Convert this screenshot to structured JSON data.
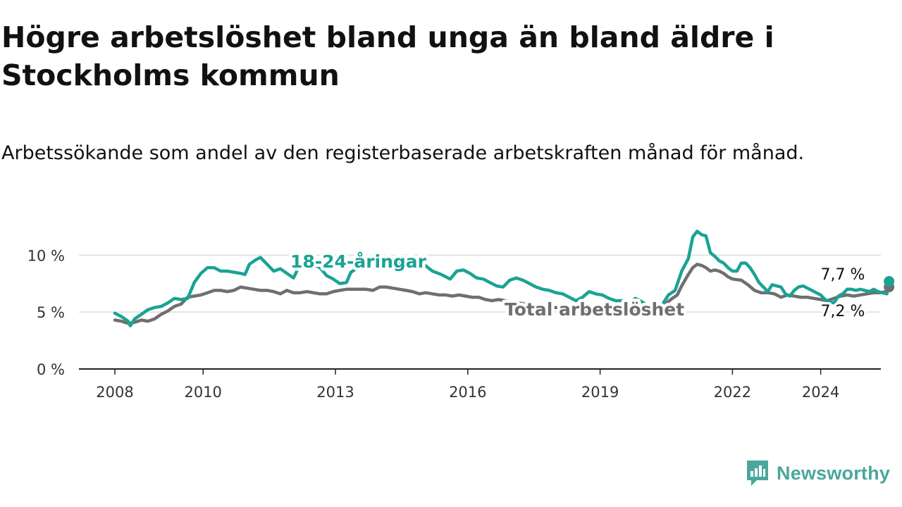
{
  "title": "Högre arbetslöshet bland unga än bland äldre i Stockholms kommun",
  "subtitle": "Arbetssökande som andel av den registerbaserade arbetskraften månad för månad.",
  "brand": {
    "name": "Newsworthy",
    "icon": "newsworthy-logo-icon",
    "color": "#4aa79c"
  },
  "chart_data": {
    "type": "line",
    "title": "Högre arbetslöshet bland unga än bland äldre i Stockholms kommun",
    "xlabel": "",
    "ylabel": "",
    "xlim": [
      2008.0,
      2025.75
    ],
    "ylim": [
      0,
      12
    ],
    "yticks": [
      0,
      5,
      10
    ],
    "ytick_labels": [
      "0 %",
      "5 %",
      "10 %"
    ],
    "xticks": [
      2008,
      2010,
      2013,
      2016,
      2019,
      2022,
      2024
    ],
    "xtick_labels": [
      "2008",
      "2010",
      "2013",
      "2016",
      "2019",
      "2022",
      "2024"
    ],
    "grid": true,
    "series": [
      {
        "name": "18-24-åringar",
        "color": "#1aa394",
        "end_label": "7,7 %",
        "points": [
          [
            2008.0,
            4.9
          ],
          [
            2008.15,
            4.6
          ],
          [
            2008.3,
            4.2
          ],
          [
            2008.35,
            3.8
          ],
          [
            2008.45,
            4.4
          ],
          [
            2008.6,
            4.8
          ],
          [
            2008.75,
            5.2
          ],
          [
            2008.9,
            5.4
          ],
          [
            2009.05,
            5.5
          ],
          [
            2009.2,
            5.8
          ],
          [
            2009.35,
            6.2
          ],
          [
            2009.5,
            6.1
          ],
          [
            2009.65,
            6.2
          ],
          [
            2009.8,
            7.6
          ],
          [
            2009.95,
            8.4
          ],
          [
            2010.1,
            8.9
          ],
          [
            2010.25,
            8.9
          ],
          [
            2010.4,
            8.6
          ],
          [
            2010.55,
            8.6
          ],
          [
            2010.7,
            8.5
          ],
          [
            2010.85,
            8.4
          ],
          [
            2010.95,
            8.3
          ],
          [
            2011.05,
            9.2
          ],
          [
            2011.2,
            9.6
          ],
          [
            2011.3,
            9.8
          ],
          [
            2011.45,
            9.2
          ],
          [
            2011.6,
            8.6
          ],
          [
            2011.75,
            8.8
          ],
          [
            2011.9,
            8.4
          ],
          [
            2012.05,
            8.0
          ],
          [
            2012.2,
            9.2
          ],
          [
            2012.35,
            9.7
          ],
          [
            2012.5,
            9.2
          ],
          [
            2012.65,
            8.9
          ],
          [
            2012.8,
            8.2
          ],
          [
            2012.95,
            7.9
          ],
          [
            2013.1,
            7.5
          ],
          [
            2013.25,
            7.6
          ],
          [
            2013.35,
            8.5
          ],
          [
            2013.55,
            9.0
          ],
          [
            2013.75,
            9.4
          ],
          [
            2013.95,
            8.9
          ],
          [
            2014.15,
            9.2
          ],
          [
            2014.35,
            9.0
          ],
          [
            2014.5,
            9.3
          ],
          [
            2014.65,
            9.5
          ],
          [
            2014.8,
            9.5
          ],
          [
            2015.0,
            9.2
          ],
          [
            2015.2,
            8.6
          ],
          [
            2015.4,
            8.3
          ],
          [
            2015.6,
            7.9
          ],
          [
            2015.75,
            8.6
          ],
          [
            2015.9,
            8.7
          ],
          [
            2016.05,
            8.4
          ],
          [
            2016.2,
            8.0
          ],
          [
            2016.35,
            7.9
          ],
          [
            2016.5,
            7.6
          ],
          [
            2016.65,
            7.3
          ],
          [
            2016.8,
            7.2
          ],
          [
            2016.95,
            7.8
          ],
          [
            2017.1,
            8.0
          ],
          [
            2017.25,
            7.8
          ],
          [
            2017.4,
            7.5
          ],
          [
            2017.55,
            7.2
          ],
          [
            2017.7,
            7.0
          ],
          [
            2017.85,
            6.9
          ],
          [
            2018.0,
            6.7
          ],
          [
            2018.15,
            6.6
          ],
          [
            2018.3,
            6.3
          ],
          [
            2018.45,
            6.0
          ],
          [
            2018.6,
            6.3
          ],
          [
            2018.75,
            6.8
          ],
          [
            2018.9,
            6.6
          ],
          [
            2019.05,
            6.5
          ],
          [
            2019.2,
            6.2
          ],
          [
            2019.35,
            6.0
          ],
          [
            2019.5,
            6.0
          ],
          [
            2019.65,
            5.8
          ],
          [
            2019.8,
            6.2
          ],
          [
            2019.95,
            5.9
          ],
          [
            2020.1,
            5.5
          ],
          [
            2020.25,
            5.3
          ],
          [
            2020.4,
            5.6
          ],
          [
            2020.55,
            6.5
          ],
          [
            2020.7,
            6.9
          ],
          [
            2020.85,
            8.6
          ],
          [
            2021.0,
            9.7
          ],
          [
            2021.1,
            11.6
          ],
          [
            2021.2,
            12.1
          ],
          [
            2021.3,
            11.8
          ],
          [
            2021.4,
            11.7
          ],
          [
            2021.5,
            10.2
          ],
          [
            2021.6,
            9.9
          ],
          [
            2021.7,
            9.5
          ],
          [
            2021.8,
            9.3
          ],
          [
            2021.9,
            8.9
          ],
          [
            2022.0,
            8.6
          ],
          [
            2022.1,
            8.6
          ],
          [
            2022.2,
            9.3
          ],
          [
            2022.3,
            9.3
          ],
          [
            2022.4,
            8.9
          ],
          [
            2022.5,
            8.3
          ],
          [
            2022.6,
            7.6
          ],
          [
            2022.7,
            7.2
          ],
          [
            2022.8,
            6.8
          ],
          [
            2022.9,
            7.4
          ],
          [
            2023.0,
            7.3
          ],
          [
            2023.1,
            7.2
          ],
          [
            2023.2,
            6.6
          ],
          [
            2023.3,
            6.4
          ],
          [
            2023.4,
            6.9
          ],
          [
            2023.5,
            7.2
          ],
          [
            2023.6,
            7.3
          ],
          [
            2023.7,
            7.1
          ],
          [
            2023.8,
            6.9
          ],
          [
            2023.9,
            6.7
          ],
          [
            2024.0,
            6.5
          ],
          [
            2024.1,
            6.1
          ],
          [
            2024.2,
            5.9
          ],
          [
            2024.3,
            5.8
          ],
          [
            2024.4,
            6.4
          ],
          [
            2024.5,
            6.6
          ],
          [
            2024.6,
            7.0
          ],
          [
            2024.7,
            7.0
          ],
          [
            2024.8,
            6.9
          ],
          [
            2024.9,
            7.0
          ],
          [
            2025.0,
            6.9
          ],
          [
            2025.1,
            6.8
          ],
          [
            2025.2,
            7.0
          ],
          [
            2025.3,
            6.8
          ],
          [
            2025.4,
            6.7
          ],
          [
            2025.5,
            6.6
          ],
          [
            2025.55,
            7.7
          ]
        ]
      },
      {
        "name": "Total arbetslöshet",
        "color": "#6f6f6f",
        "end_label": "7,2 %",
        "points": [
          [
            2008.0,
            4.3
          ],
          [
            2008.15,
            4.2
          ],
          [
            2008.3,
            4.0
          ],
          [
            2008.45,
            4.1
          ],
          [
            2008.6,
            4.3
          ],
          [
            2008.75,
            4.2
          ],
          [
            2008.9,
            4.4
          ],
          [
            2009.05,
            4.8
          ],
          [
            2009.2,
            5.1
          ],
          [
            2009.35,
            5.5
          ],
          [
            2009.5,
            5.7
          ],
          [
            2009.65,
            6.3
          ],
          [
            2009.8,
            6.4
          ],
          [
            2009.95,
            6.5
          ],
          [
            2010.1,
            6.7
          ],
          [
            2010.25,
            6.9
          ],
          [
            2010.4,
            6.9
          ],
          [
            2010.55,
            6.8
          ],
          [
            2010.7,
            6.9
          ],
          [
            2010.85,
            7.2
          ],
          [
            2011.0,
            7.1
          ],
          [
            2011.15,
            7.0
          ],
          [
            2011.3,
            6.9
          ],
          [
            2011.45,
            6.9
          ],
          [
            2011.6,
            6.8
          ],
          [
            2011.75,
            6.6
          ],
          [
            2011.9,
            6.9
          ],
          [
            2012.05,
            6.7
          ],
          [
            2012.2,
            6.7
          ],
          [
            2012.35,
            6.8
          ],
          [
            2012.5,
            6.7
          ],
          [
            2012.65,
            6.6
          ],
          [
            2012.8,
            6.6
          ],
          [
            2012.95,
            6.8
          ],
          [
            2013.1,
            6.9
          ],
          [
            2013.25,
            7.0
          ],
          [
            2013.4,
            7.0
          ],
          [
            2013.55,
            7.0
          ],
          [
            2013.7,
            7.0
          ],
          [
            2013.85,
            6.9
          ],
          [
            2014.0,
            7.2
          ],
          [
            2014.15,
            7.2
          ],
          [
            2014.3,
            7.1
          ],
          [
            2014.45,
            7.0
          ],
          [
            2014.6,
            6.9
          ],
          [
            2014.75,
            6.8
          ],
          [
            2014.9,
            6.6
          ],
          [
            2015.05,
            6.7
          ],
          [
            2015.2,
            6.6
          ],
          [
            2015.35,
            6.5
          ],
          [
            2015.5,
            6.5
          ],
          [
            2015.65,
            6.4
          ],
          [
            2015.8,
            6.5
          ],
          [
            2015.95,
            6.4
          ],
          [
            2016.1,
            6.3
          ],
          [
            2016.25,
            6.3
          ],
          [
            2016.4,
            6.1
          ],
          [
            2016.55,
            6.0
          ],
          [
            2016.7,
            6.1
          ],
          [
            2016.85,
            6.0
          ],
          [
            2017.0,
            5.9
          ],
          [
            2017.15,
            5.8
          ],
          [
            2017.3,
            5.7
          ],
          [
            2017.45,
            5.6
          ],
          [
            2017.6,
            5.6
          ],
          [
            2017.75,
            5.5
          ],
          [
            2017.9,
            5.4
          ],
          [
            2018.05,
            5.4
          ],
          [
            2018.2,
            5.3
          ],
          [
            2018.35,
            5.2
          ],
          [
            2018.5,
            5.3
          ],
          [
            2018.65,
            5.2
          ],
          [
            2018.8,
            5.2
          ],
          [
            2018.95,
            5.1
          ],
          [
            2019.1,
            5.1
          ],
          [
            2019.25,
            5.1
          ],
          [
            2019.4,
            5.1
          ],
          [
            2019.55,
            5.1
          ],
          [
            2019.7,
            5.0
          ],
          [
            2019.85,
            5.1
          ],
          [
            2020.0,
            5.1
          ],
          [
            2020.15,
            5.2
          ],
          [
            2020.3,
            5.3
          ],
          [
            2020.45,
            5.6
          ],
          [
            2020.6,
            6.1
          ],
          [
            2020.75,
            6.5
          ],
          [
            2020.85,
            7.3
          ],
          [
            2021.0,
            8.3
          ],
          [
            2021.1,
            8.9
          ],
          [
            2021.2,
            9.2
          ],
          [
            2021.3,
            9.1
          ],
          [
            2021.4,
            8.9
          ],
          [
            2021.5,
            8.6
          ],
          [
            2021.6,
            8.7
          ],
          [
            2021.7,
            8.6
          ],
          [
            2021.8,
            8.4
          ],
          [
            2021.9,
            8.1
          ],
          [
            2022.0,
            7.9
          ],
          [
            2022.2,
            7.8
          ],
          [
            2022.35,
            7.4
          ],
          [
            2022.5,
            6.9
          ],
          [
            2022.65,
            6.7
          ],
          [
            2022.8,
            6.7
          ],
          [
            2022.95,
            6.6
          ],
          [
            2023.1,
            6.3
          ],
          [
            2023.25,
            6.5
          ],
          [
            2023.4,
            6.4
          ],
          [
            2023.55,
            6.3
          ],
          [
            2023.7,
            6.3
          ],
          [
            2023.85,
            6.2
          ],
          [
            2024.0,
            6.1
          ],
          [
            2024.15,
            6.0
          ],
          [
            2024.3,
            6.2
          ],
          [
            2024.45,
            6.4
          ],
          [
            2024.6,
            6.5
          ],
          [
            2024.75,
            6.4
          ],
          [
            2024.9,
            6.5
          ],
          [
            2025.05,
            6.6
          ],
          [
            2025.2,
            6.7
          ],
          [
            2025.35,
            6.7
          ],
          [
            2025.5,
            6.8
          ],
          [
            2025.55,
            7.2
          ]
        ]
      }
    ]
  }
}
